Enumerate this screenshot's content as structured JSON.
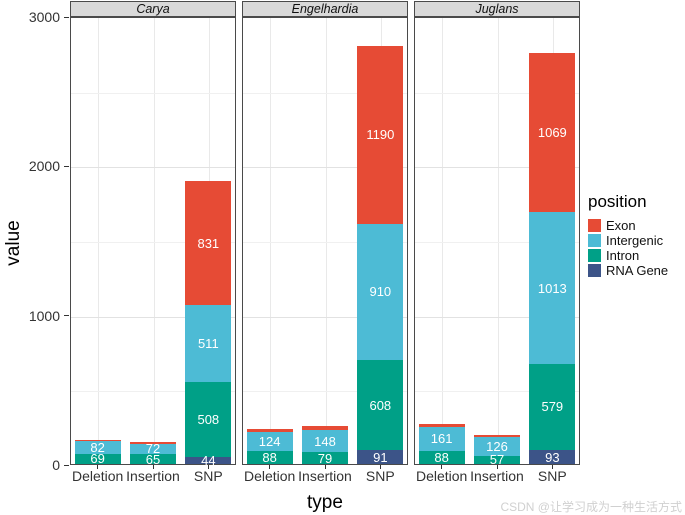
{
  "watermark": "CSDN @让学习成为一种生活方式",
  "chart_data": {
    "type": "bar",
    "variant": "stacked-faceted",
    "title": "",
    "xlabel": "type",
    "ylabel": "value",
    "ylim": [
      0,
      3000
    ],
    "yticks": [
      0,
      1000,
      2000,
      3000
    ],
    "grid": {
      "major": [
        1000,
        2000,
        3000
      ],
      "minor": [
        500,
        1500,
        2500
      ]
    },
    "categories": [
      "Deletion",
      "Insertion",
      "SNP"
    ],
    "legend": {
      "title": "position",
      "position": "right",
      "entries": [
        {
          "label": "Exon",
          "color": "#E64B35"
        },
        {
          "label": "Intergenic",
          "color": "#4DBBD5"
        },
        {
          "label": "Intron",
          "color": "#00A087"
        },
        {
          "label": "RNA Gene",
          "color": "#3C5488"
        }
      ]
    },
    "segment_order_top_to_bottom": [
      "Exon",
      "Intergenic",
      "Intron",
      "RNA Gene"
    ],
    "facets": [
      {
        "name": "Carya",
        "bars": [
          {
            "category": "Deletion",
            "segments": [
              {
                "position": "Exon",
                "value": 12,
                "labeled": false,
                "estimated": true
              },
              {
                "position": "Intergenic",
                "value": 82,
                "labeled": true
              },
              {
                "position": "Intron",
                "value": 69,
                "labeled": true
              }
            ]
          },
          {
            "category": "Insertion",
            "segments": [
              {
                "position": "Exon",
                "value": 8,
                "labeled": false,
                "estimated": true
              },
              {
                "position": "Intergenic",
                "value": 72,
                "labeled": true
              },
              {
                "position": "Intron",
                "value": 65,
                "labeled": true
              }
            ]
          },
          {
            "category": "SNP",
            "segments": [
              {
                "position": "Exon",
                "value": 831,
                "labeled": true
              },
              {
                "position": "Intergenic",
                "value": 511,
                "labeled": true
              },
              {
                "position": "Intron",
                "value": 508,
                "labeled": true
              },
              {
                "position": "RNA Gene",
                "value": 44,
                "labeled": true
              }
            ]
          }
        ]
      },
      {
        "name": "Engelhardia",
        "bars": [
          {
            "category": "Deletion",
            "segments": [
              {
                "position": "Exon",
                "value": 20,
                "labeled": false,
                "estimated": true
              },
              {
                "position": "Intergenic",
                "value": 124,
                "labeled": true
              },
              {
                "position": "Intron",
                "value": 88,
                "labeled": true
              }
            ]
          },
          {
            "category": "Insertion",
            "segments": [
              {
                "position": "Exon",
                "value": 25,
                "labeled": false,
                "estimated": true
              },
              {
                "position": "Intergenic",
                "value": 148,
                "labeled": true
              },
              {
                "position": "Intron",
                "value": 79,
                "labeled": true
              }
            ]
          },
          {
            "category": "SNP",
            "segments": [
              {
                "position": "Exon",
                "value": 1190,
                "labeled": true
              },
              {
                "position": "Intergenic",
                "value": 910,
                "labeled": true
              },
              {
                "position": "Intron",
                "value": 608,
                "labeled": true
              },
              {
                "position": "RNA Gene",
                "value": 91,
                "labeled": true
              }
            ]
          }
        ]
      },
      {
        "name": "Juglans",
        "bars": [
          {
            "category": "Deletion",
            "segments": [
              {
                "position": "Exon",
                "value": 18,
                "labeled": false,
                "estimated": true
              },
              {
                "position": "Intergenic",
                "value": 161,
                "labeled": true
              },
              {
                "position": "Intron",
                "value": 88,
                "labeled": true
              }
            ]
          },
          {
            "category": "Insertion",
            "segments": [
              {
                "position": "Exon",
                "value": 10,
                "labeled": false,
                "estimated": true
              },
              {
                "position": "Intergenic",
                "value": 126,
                "labeled": true
              },
              {
                "position": "Intron",
                "value": 57,
                "labeled": true
              }
            ]
          },
          {
            "category": "SNP",
            "segments": [
              {
                "position": "Exon",
                "value": 1069,
                "labeled": true
              },
              {
                "position": "Intergenic",
                "value": 1013,
                "labeled": true
              },
              {
                "position": "Intron",
                "value": 579,
                "labeled": true
              },
              {
                "position": "RNA Gene",
                "value": 93,
                "labeled": true
              }
            ]
          }
        ]
      }
    ]
  }
}
